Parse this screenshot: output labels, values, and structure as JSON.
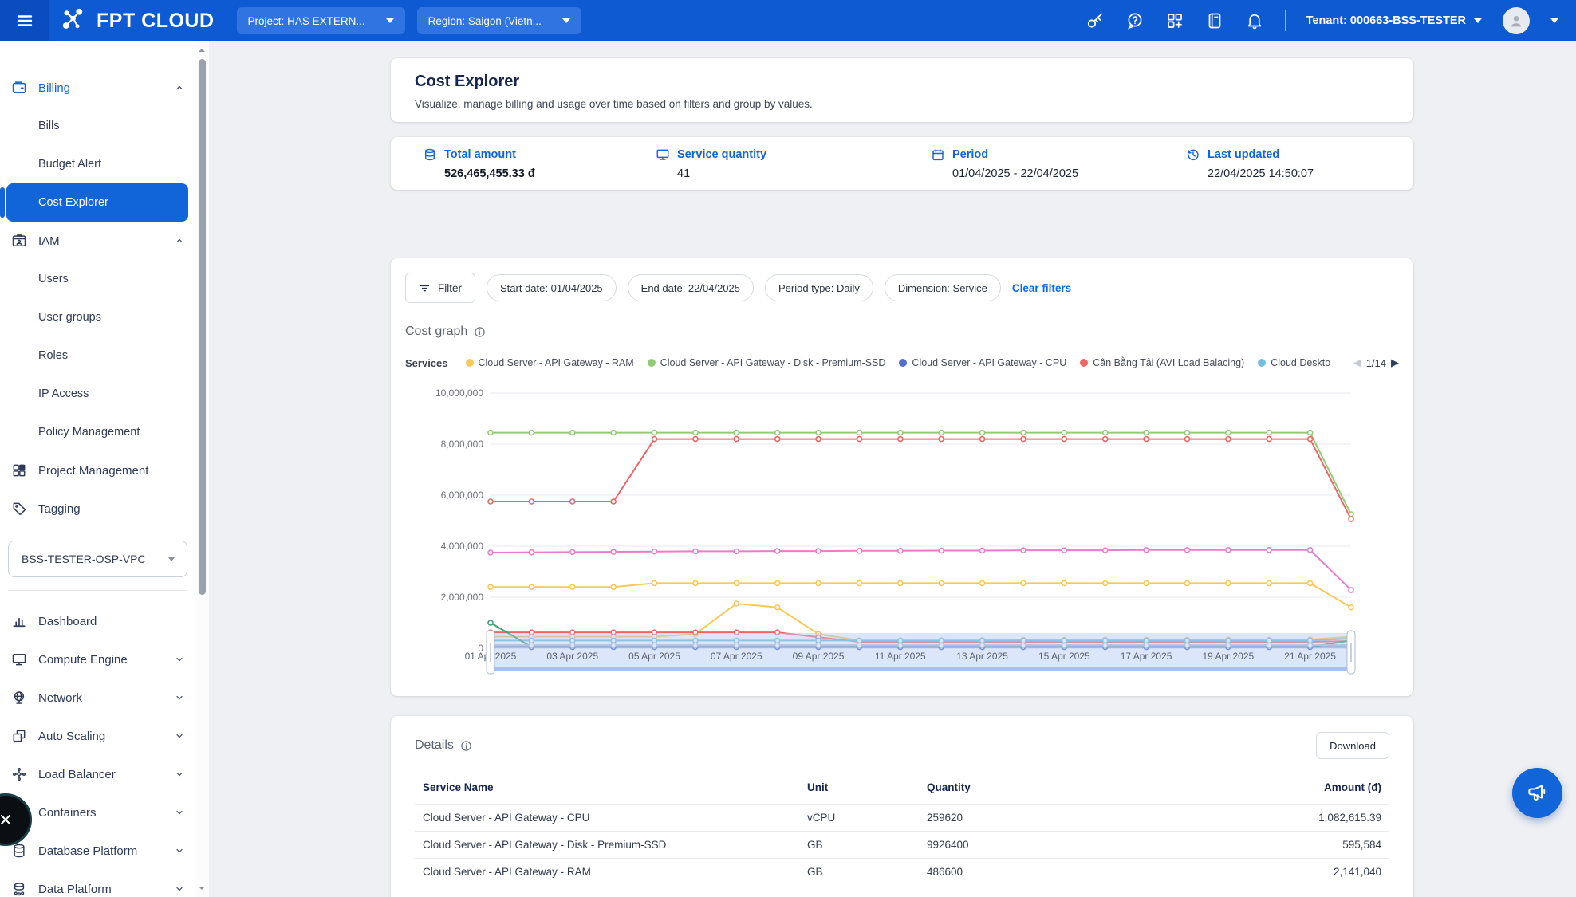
{
  "navbar": {
    "project": "Project: HAS EXTERN...",
    "region": "Region: Saigon (Vietn...",
    "tenant": "Tenant: 000663-BSS-TESTER"
  },
  "sidebar": {
    "billing_label": "Billing",
    "billing_items": [
      "Bills",
      "Budget Alert",
      "Cost Explorer"
    ],
    "iam_label": "IAM",
    "iam_items": [
      "Users",
      "User groups",
      "Roles",
      "IP Access",
      "Policy Management"
    ],
    "project_mgmt_label": "Project Management",
    "tagging_label": "Tagging",
    "vpc_select_value": "BSS-TESTER-OSP-VPC",
    "bottom_items": [
      "Dashboard",
      "Compute Engine",
      "Network",
      "Auto Scaling",
      "Load Balancer",
      "Containers",
      "Database Platform",
      "Data Platform"
    ]
  },
  "page": {
    "title": "Cost Explorer",
    "subtitle": "Visualize, manage billing and usage over time based on filters and group by values."
  },
  "summary": [
    {
      "label": "Total amount",
      "value": "526,465,455.33 đ"
    },
    {
      "label": "Service quantity",
      "value": "41"
    },
    {
      "label": "Period",
      "value": "01/04/2025 - 22/04/2025"
    },
    {
      "label": "Last updated",
      "value": "22/04/2025 14:50:07"
    }
  ],
  "filters": {
    "button": "Filter",
    "pills": [
      "Start date: 01/04/2025",
      "End date: 22/04/2025",
      "Period type: Daily",
      "Dimension: Service"
    ],
    "clear": "Clear filters"
  },
  "cost_graph": {
    "title": "Cost graph",
    "legend_label": "Services",
    "pagination": "1/14",
    "pager_prev": "◀",
    "pager_next": "▶"
  },
  "chart_data": {
    "type": "line",
    "title": "Cost graph",
    "ylim": [
      0,
      10000000
    ],
    "yticks": [
      0,
      2000000,
      4000000,
      6000000,
      8000000,
      10000000
    ],
    "grid": true,
    "legend_position": "top",
    "categories": [
      "01 Apr 2025",
      "02 Apr 2025",
      "03 Apr 2025",
      "04 Apr 2025",
      "05 Apr 2025",
      "06 Apr 2025",
      "07 Apr 2025",
      "08 Apr 2025",
      "09 Apr 2025",
      "10 Apr 2025",
      "11 Apr 2025",
      "12 Apr 2025",
      "13 Apr 2025",
      "14 Apr 2025",
      "15 Apr 2025",
      "16 Apr 2025",
      "17 Apr 2025",
      "18 Apr 2025",
      "19 Apr 2025",
      "20 Apr 2025",
      "21 Apr 2025",
      "22 Apr 2025"
    ],
    "xtick_labels": [
      "01 Apr 2025",
      "03 Apr 2025",
      "05 Apr 2025",
      "07 Apr 2025",
      "09 Apr 2025",
      "11 Apr 2025",
      "13 Apr 2025",
      "15 Apr 2025",
      "17 Apr 2025",
      "19 Apr 2025",
      "21 Apr 2025"
    ],
    "legend": [
      {
        "label": "Cloud Server - API Gateway - RAM",
        "color": "#FAC858"
      },
      {
        "label": "Cloud Server - API Gateway - Disk - Premium-SSD",
        "color": "#91CC75"
      },
      {
        "label": "Cloud Server - API Gateway - CPU",
        "color": "#5470C6"
      },
      {
        "label": "Cân Bằng Tải (AVI Load Balacing)",
        "color": "#EE6666"
      },
      {
        "label": "Cloud Deskto",
        "color": "#73C0DE"
      }
    ],
    "series": [
      {
        "name": "Cloud Server - API Gateway - Disk - Premium-SSD",
        "color": "#91CC75",
        "values": [
          8450000,
          8450000,
          8450000,
          8450000,
          8450000,
          8450000,
          8450000,
          8450000,
          8450000,
          8450000,
          8450000,
          8450000,
          8450000,
          8450000,
          8450000,
          8450000,
          8450000,
          8450000,
          8450000,
          8450000,
          8450000,
          5250000
        ]
      },
      {
        "name": "Cân Bằng Tải (AVI Load Balacing)",
        "color": "#EE6666",
        "values": [
          5750000,
          5750000,
          5750000,
          5750000,
          8200000,
          8200000,
          8200000,
          8200000,
          8200000,
          8200000,
          8200000,
          8200000,
          8200000,
          8200000,
          8200000,
          8200000,
          8200000,
          8200000,
          8200000,
          8200000,
          8200000,
          5060000
        ]
      },
      {
        "name": "",
        "color": "#EA7CCC",
        "values": [
          3750000,
          3760000,
          3770000,
          3780000,
          3790000,
          3800000,
          3800000,
          3810000,
          3810000,
          3820000,
          3820000,
          3830000,
          3830000,
          3840000,
          3840000,
          3840000,
          3850000,
          3850000,
          3850000,
          3850000,
          3850000,
          2280000
        ]
      },
      {
        "name": "Cloud Server - API Gateway - RAM",
        "color": "#FAC858",
        "values": [
          2400000,
          2400000,
          2400000,
          2400000,
          2550000,
          2550000,
          2550000,
          2550000,
          2550000,
          2550000,
          2550000,
          2550000,
          2550000,
          2550000,
          2550000,
          2550000,
          2550000,
          2550000,
          2550000,
          2550000,
          2550000,
          1600000
        ]
      },
      {
        "name": "",
        "color": "#FAC858",
        "values": [
          450000,
          450000,
          450000,
          450000,
          450000,
          560000,
          1750000,
          1600000,
          560000,
          300000,
          300000,
          300000,
          310000,
          330000,
          330000,
          330000,
          330000,
          330000,
          330000,
          330000,
          340000,
          450000
        ]
      },
      {
        "name": "",
        "color": "#EE6666",
        "values": [
          620000,
          620000,
          620000,
          620000,
          620000,
          620000,
          620000,
          620000,
          430000,
          250000,
          250000,
          250000,
          250000,
          250000,
          250000,
          250000,
          250000,
          250000,
          250000,
          250000,
          250000,
          280000
        ]
      },
      {
        "name": "Cloud Deskto",
        "color": "#73C0DE",
        "values": [
          300000,
          300000,
          300000,
          300000,
          300000,
          300000,
          300000,
          300000,
          300000,
          300000,
          300000,
          300000,
          300000,
          300000,
          300000,
          300000,
          300000,
          300000,
          300000,
          300000,
          300000,
          380000
        ]
      },
      {
        "name": "",
        "color": "#3BA272",
        "values": [
          1000000,
          50000,
          50000,
          50000,
          50000,
          50000,
          50000,
          50000,
          50000,
          50000,
          50000,
          50000,
          50000,
          50000,
          50000,
          50000,
          50000,
          50000,
          50000,
          50000,
          50000,
          300000
        ]
      },
      {
        "name": "Cloud Server - API Gateway - CPU",
        "color": "#5470C6",
        "values": [
          49000,
          49000,
          49000,
          49000,
          49000,
          49000,
          49000,
          49000,
          49000,
          49000,
          49000,
          49000,
          49000,
          49000,
          49000,
          49000,
          49000,
          49000,
          49000,
          49000,
          49000,
          49000
        ]
      },
      {
        "name": "",
        "color": "#B9BEC6",
        "values": [
          120000,
          120000,
          120000,
          120000,
          120000,
          120000,
          120000,
          120000,
          120000,
          120000,
          120000,
          120000,
          120000,
          120000,
          120000,
          120000,
          120000,
          120000,
          120000,
          120000,
          120000,
          130000
        ]
      }
    ]
  },
  "details": {
    "title": "Details",
    "download": "Download",
    "columns": [
      "Service Name",
      "Unit",
      "Quantity",
      "Amount (đ)"
    ],
    "rows": [
      [
        "Cloud Server - API Gateway - CPU",
        "vCPU",
        "259620",
        "1,082,615.39"
      ],
      [
        "Cloud Server - API Gateway - Disk - Premium-SSD",
        "GB",
        "9926400",
        "595,584"
      ],
      [
        "Cloud Server - API Gateway - RAM",
        "GB",
        "486600",
        "2,141,040"
      ]
    ]
  }
}
